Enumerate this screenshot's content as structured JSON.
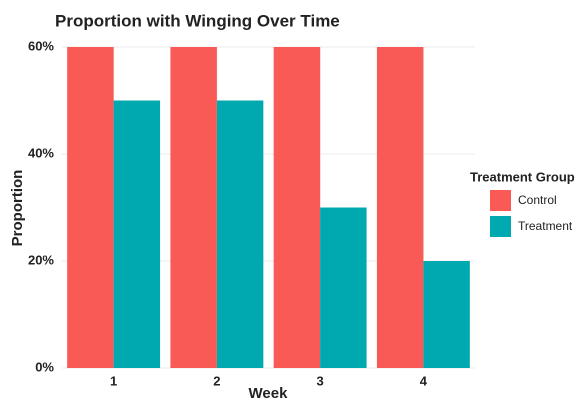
{
  "chart_data": {
    "type": "bar",
    "title": "Proportion with Winging Over Time",
    "x_label": "Week",
    "y_label": "Proportion",
    "categories": [
      "1",
      "2",
      "3",
      "4"
    ],
    "series": [
      {
        "name": "Control",
        "color": "#fa5a55",
        "values": [
          60,
          60,
          60,
          60
        ]
      },
      {
        "name": "Treatment",
        "color": "#00a8b0",
        "values": [
          50,
          50,
          30,
          20
        ]
      }
    ],
    "ylim": [
      0,
      60
    ],
    "yticks": [
      {
        "value": 0,
        "label": "0%"
      },
      {
        "value": 20,
        "label": "20%"
      },
      {
        "value": 40,
        "label": "40%"
      },
      {
        "value": 60,
        "label": "60%"
      }
    ],
    "grid": true,
    "legend": {
      "title": "Treatment Group",
      "position": "right"
    }
  }
}
